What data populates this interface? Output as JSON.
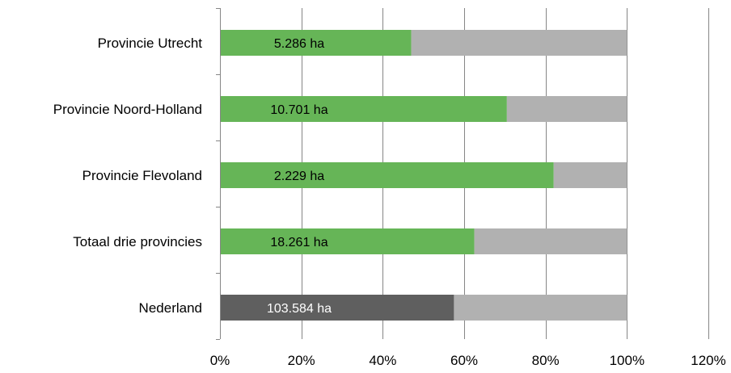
{
  "chart_data": {
    "type": "bar",
    "orientation": "horizontal",
    "stacked_percent": true,
    "title": "",
    "xlabel": "",
    "ylabel": "",
    "xlim": [
      0,
      120
    ],
    "x_ticks": [
      "0%",
      "20%",
      "40%",
      "60%",
      "80%",
      "100%",
      "120%"
    ],
    "x_tick_values": [
      0,
      20,
      40,
      60,
      80,
      100,
      120
    ],
    "grid": "vertical",
    "legend": "none",
    "categories": [
      "Provincie Utrecht",
      "Provincie Noord-Holland",
      "Provincie Flevoland",
      "Totaal drie provincies",
      "Nederland"
    ],
    "values": [
      47,
      70.5,
      82,
      62.5,
      57.5
    ],
    "data_labels": [
      "5.286 ha",
      "10.701 ha",
      "2.229 ha",
      "18.261 ha",
      "103.584 ha"
    ],
    "bar_colors": [
      "#66b557",
      "#66b557",
      "#66b557",
      "#66b557",
      "#5f5f5f"
    ],
    "remainder_color": "#b1b1b1",
    "label_colors": [
      "#000000",
      "#000000",
      "#000000",
      "#000000",
      "#ffffff"
    ],
    "colors": {
      "green": "#66b557",
      "dark_grey": "#5f5f5f",
      "light_grey": "#b1b1b1",
      "grid": "#868686",
      "axis": "#868686"
    }
  }
}
